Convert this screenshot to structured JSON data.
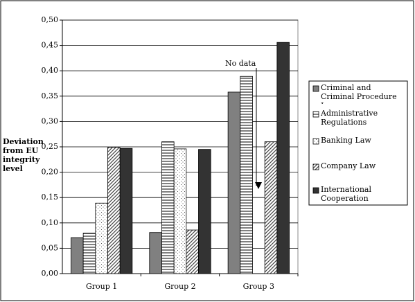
{
  "chart_data": {
    "type": "bar",
    "y_label": "Deviation from EU integrity level",
    "annotation": "No data",
    "categories": [
      "Group 1",
      "Group 2",
      "Group 3"
    ],
    "series": [
      {
        "name": "Criminal and Criminal Procedure Law",
        "color": "#808080",
        "pattern": "solid",
        "values": [
          0.071,
          0.081,
          0.358
        ]
      },
      {
        "name": "Administrative Regulations",
        "color": "#000000",
        "pattern": "horizontal",
        "values": [
          0.08,
          0.26,
          0.389
        ]
      },
      {
        "name": "Banking Law",
        "color": "#000000",
        "pattern": "dots",
        "values": [
          0.139,
          0.246,
          null
        ]
      },
      {
        "name": "Company Law",
        "color": "#000000",
        "pattern": "diagonal",
        "values": [
          0.249,
          0.086,
          0.26
        ]
      },
      {
        "name": "International Cooperation",
        "color": "#333333",
        "pattern": "solid",
        "values": [
          0.247,
          0.245,
          0.456
        ]
      }
    ],
    "ylim": [
      0,
      0.5
    ],
    "yticks": [
      {
        "value": 0,
        "label": "0,00"
      },
      {
        "value": 0.05,
        "label": "0,05"
      },
      {
        "value": 0.1,
        "label": "0,10"
      },
      {
        "value": 0.15,
        "label": "0,15"
      },
      {
        "value": 0.2,
        "label": "0,20"
      },
      {
        "value": 0.25,
        "label": "0,25"
      },
      {
        "value": 0.3,
        "label": "0,30"
      },
      {
        "value": 0.35,
        "label": "0,35"
      },
      {
        "value": 0.4,
        "label": "0,40"
      },
      {
        "value": 0.45,
        "label": "0,45"
      },
      {
        "value": 0.5,
        "label": "0,50"
      }
    ],
    "grid": true
  }
}
